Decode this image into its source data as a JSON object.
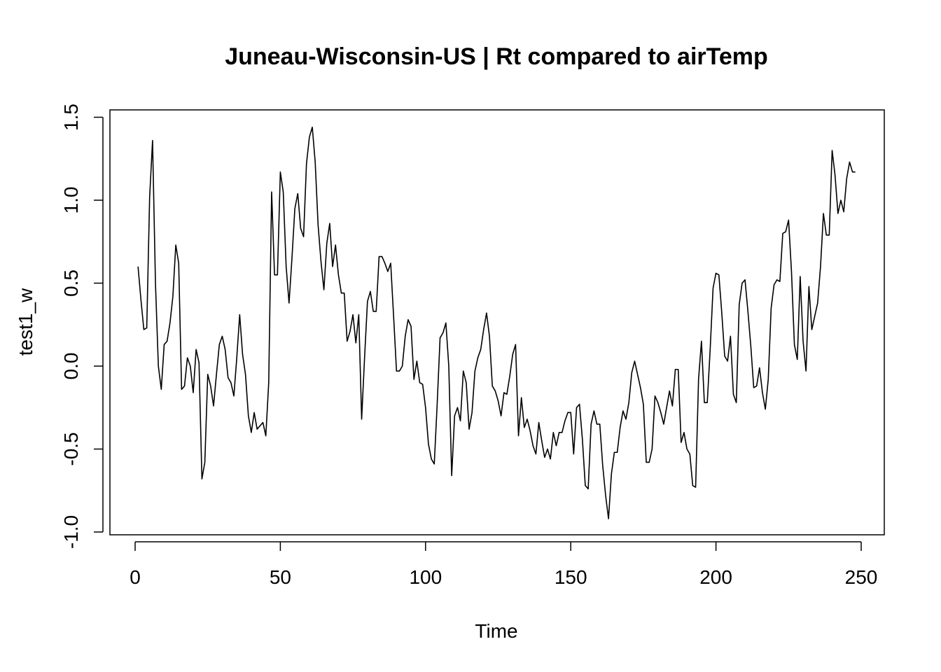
{
  "chart_data": {
    "type": "line",
    "title": "Juneau-Wisconsin-US | Rt compared to airTemp",
    "xlabel": "Time",
    "ylabel": "test1_w",
    "xlim": [
      1,
      248
    ],
    "ylim": [
      -1.0,
      1.5
    ],
    "x_ticks": [
      0,
      50,
      100,
      150,
      200,
      250
    ],
    "y_ticks": [
      -1.0,
      -0.5,
      0.0,
      0.5,
      1.0,
      1.5
    ],
    "x_tick_labels": [
      "0",
      "50",
      "100",
      "150",
      "200",
      "250"
    ],
    "y_tick_labels": [
      "-1.0",
      "-0.5",
      "0.0",
      "0.5",
      "1.0",
      "1.5"
    ],
    "grid": false,
    "legend": "none",
    "line_color": "#000000",
    "x": [
      1,
      2,
      3,
      4,
      5,
      6,
      7,
      8,
      9,
      10,
      11,
      12,
      13,
      14,
      15,
      16,
      17,
      18,
      19,
      20,
      21,
      22,
      23,
      24,
      25,
      26,
      27,
      28,
      29,
      30,
      31,
      32,
      33,
      34,
      35,
      36,
      37,
      38,
      39,
      40,
      41,
      42,
      43,
      44,
      45,
      46,
      47,
      48,
      49,
      50,
      51,
      52,
      53,
      54,
      55,
      56,
      57,
      58,
      59,
      60,
      61,
      62,
      63,
      64,
      65,
      66,
      67,
      68,
      69,
      70,
      71,
      72,
      73,
      74,
      75,
      76,
      77,
      78,
      79,
      80,
      81,
      82,
      83,
      84,
      85,
      86,
      87,
      88,
      89,
      90,
      91,
      92,
      93,
      94,
      95,
      96,
      97,
      98,
      99,
      100,
      101,
      102,
      103,
      104,
      105,
      106,
      107,
      108,
      109,
      110,
      111,
      112,
      113,
      114,
      115,
      116,
      117,
      118,
      119,
      120,
      121,
      122,
      123,
      124,
      125,
      126,
      127,
      128,
      129,
      130,
      131,
      132,
      133,
      134,
      135,
      136,
      137,
      138,
      139,
      140,
      141,
      142,
      143,
      144,
      145,
      146,
      147,
      148,
      149,
      150,
      151,
      152,
      153,
      154,
      155,
      156,
      157,
      158,
      159,
      160,
      161,
      162,
      163,
      164,
      165,
      166,
      167,
      168,
      169,
      170,
      171,
      172,
      173,
      174,
      175,
      176,
      177,
      178,
      179,
      180,
      181,
      182,
      183,
      184,
      185,
      186,
      187,
      188,
      189,
      190,
      191,
      192,
      193,
      194,
      195,
      196,
      197,
      198,
      199,
      200,
      201,
      202,
      203,
      204,
      205,
      206,
      207,
      208,
      209,
      210,
      211,
      212,
      213,
      214,
      215,
      216,
      217,
      218,
      219,
      220,
      221,
      222,
      223,
      224,
      225,
      226,
      227,
      228,
      229,
      230,
      231,
      232,
      233,
      234,
      235,
      236,
      237,
      238,
      239,
      240,
      241,
      242,
      243,
      244,
      245,
      246,
      247,
      248
    ],
    "series": [
      {
        "values": [
          0.6,
          0.4,
          0.22,
          0.23,
          1.02,
          1.36,
          0.5,
          0.0,
          -0.14,
          0.13,
          0.15,
          0.26,
          0.42,
          0.73,
          0.62,
          -0.14,
          -0.12,
          0.05,
          0.0,
          -0.16,
          0.1,
          0.02,
          -0.68,
          -0.58,
          -0.05,
          -0.12,
          -0.24,
          -0.05,
          0.13,
          0.18,
          0.1,
          -0.07,
          -0.1,
          -0.18,
          0.05,
          0.31,
          0.07,
          -0.05,
          -0.3,
          -0.4,
          -0.28,
          -0.38,
          -0.36,
          -0.34,
          -0.42,
          -0.1,
          1.05,
          0.55,
          0.55,
          1.17,
          1.05,
          0.6,
          0.38,
          0.65,
          0.95,
          1.04,
          0.83,
          0.78,
          1.22,
          1.38,
          1.44,
          1.23,
          0.85,
          0.63,
          0.46,
          0.74,
          0.86,
          0.6,
          0.73,
          0.55,
          0.44,
          0.44,
          0.15,
          0.21,
          0.31,
          0.14,
          0.31,
          -0.32,
          0.05,
          0.39,
          0.45,
          0.33,
          0.33,
          0.66,
          0.66,
          0.62,
          0.57,
          0.62,
          0.3,
          -0.03,
          -0.03,
          0.0,
          0.18,
          0.28,
          0.24,
          -0.08,
          0.03,
          -0.1,
          -0.11,
          -0.25,
          -0.47,
          -0.56,
          -0.59,
          -0.23,
          0.17,
          0.2,
          0.26,
          0.0,
          -0.66,
          -0.3,
          -0.25,
          -0.33,
          -0.03,
          -0.1,
          -0.38,
          -0.28,
          -0.03,
          0.05,
          0.1,
          0.22,
          0.32,
          0.18,
          -0.12,
          -0.15,
          -0.21,
          -0.3,
          -0.16,
          -0.17,
          -0.06,
          0.07,
          0.13,
          -0.42,
          -0.19,
          -0.37,
          -0.32,
          -0.39,
          -0.48,
          -0.53,
          -0.34,
          -0.45,
          -0.55,
          -0.5,
          -0.56,
          -0.4,
          -0.48,
          -0.4,
          -0.4,
          -0.33,
          -0.28,
          -0.28,
          -0.53,
          -0.25,
          -0.23,
          -0.44,
          -0.72,
          -0.74,
          -0.35,
          -0.27,
          -0.35,
          -0.35,
          -0.6,
          -0.78,
          -0.92,
          -0.65,
          -0.52,
          -0.52,
          -0.37,
          -0.27,
          -0.32,
          -0.22,
          -0.04,
          0.03,
          -0.05,
          -0.13,
          -0.23,
          -0.58,
          -0.58,
          -0.5,
          -0.18,
          -0.22,
          -0.28,
          -0.35,
          -0.25,
          -0.15,
          -0.24,
          -0.02,
          -0.02,
          -0.46,
          -0.4,
          -0.5,
          -0.53,
          -0.72,
          -0.73,
          -0.08,
          0.15,
          -0.22,
          -0.22,
          0.1,
          0.47,
          0.56,
          0.55,
          0.32,
          0.06,
          0.03,
          0.18,
          -0.17,
          -0.22,
          0.37,
          0.5,
          0.52,
          0.33,
          0.12,
          -0.13,
          -0.12,
          -0.01,
          -0.16,
          -0.26,
          -0.08,
          0.35,
          0.49,
          0.52,
          0.51,
          0.8,
          0.81,
          0.88,
          0.57,
          0.13,
          0.04,
          0.54,
          0.15,
          -0.03,
          0.48,
          0.22,
          0.3,
          0.38,
          0.6,
          0.92,
          0.79,
          0.79,
          1.3,
          1.15,
          0.92,
          1.0,
          0.93,
          1.13,
          1.23,
          1.17,
          1.17
        ]
      }
    ]
  }
}
